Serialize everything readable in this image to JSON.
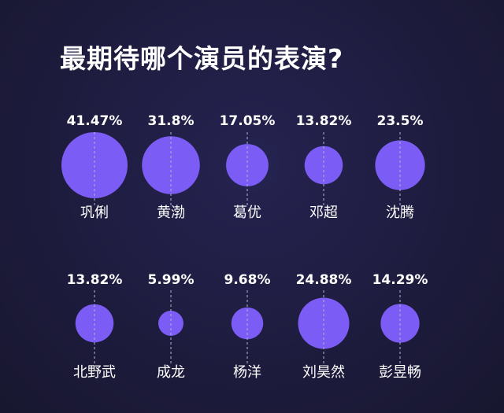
{
  "chart_data": {
    "type": "bubble",
    "title": "最期待哪个演员的表演?",
    "categories": [
      "巩俐",
      "黄渤",
      "葛优",
      "邓超",
      "沈腾",
      "北野武",
      "成龙",
      "杨洋",
      "刘昊然",
      "彭昱畅"
    ],
    "values": [
      41.47,
      31.8,
      17.05,
      13.82,
      23.5,
      13.82,
      5.99,
      9.68,
      24.88,
      14.29
    ],
    "value_labels": [
      "41.47%",
      "31.8%",
      "17.05%",
      "13.82%",
      "23.5%",
      "13.82%",
      "5.99%",
      "9.68%",
      "24.88%",
      "14.29%"
    ],
    "unit": "%",
    "layout": "grid-2-rows-5-columns",
    "bubble_color": "#7b5cf5",
    "background_color": "#1e1c3e",
    "guide_line_color": "#b4b4d2"
  }
}
